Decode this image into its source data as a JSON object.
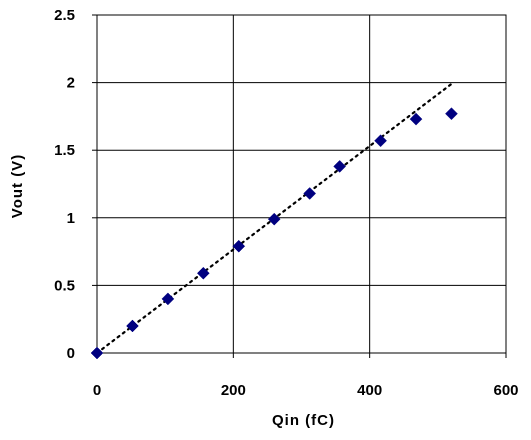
{
  "chart_data": {
    "type": "scatter",
    "title": "",
    "xlabel": "Qin (fC)",
    "ylabel": "Vout (V)",
    "xlim": [
      0,
      600
    ],
    "ylim": [
      0,
      2.5
    ],
    "x_ticks": [
      0,
      200,
      400,
      600
    ],
    "x_tick_labels": [
      "0",
      "200",
      "400",
      "600"
    ],
    "y_ticks": [
      0,
      0.5,
      1,
      1.5,
      2,
      2.5
    ],
    "y_tick_labels": [
      "0",
      "0.5",
      "1",
      "1.5",
      "2",
      "2.5"
    ],
    "grid": true,
    "legend": "none",
    "series": [
      {
        "marker": "diamond",
        "color": "#000080",
        "x": [
          0,
          52,
          104,
          156,
          208,
          260,
          312,
          356,
          416,
          468,
          520
        ],
        "y": [
          0,
          0.2,
          0.4,
          0.59,
          0.79,
          0.99,
          1.18,
          1.38,
          1.57,
          1.73,
          1.77
        ]
      }
    ],
    "trendline": {
      "style": "dotted",
      "color": "#000000",
      "x": [
        0,
        520
      ],
      "y": [
        0,
        1.99
      ]
    }
  }
}
